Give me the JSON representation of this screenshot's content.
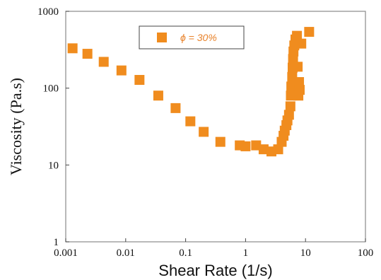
{
  "chart_data": {
    "type": "scatter",
    "xlabel": "Shear Rate (1/s)",
    "ylabel": "Viscosity (Pa.s)",
    "x_scale": "log",
    "y_scale": "log",
    "xlim": [
      0.001,
      100
    ],
    "ylim": [
      1,
      1000
    ],
    "x_ticks": [
      {
        "value": 0.001,
        "label": "0.001"
      },
      {
        "value": 0.01,
        "label": "0.01"
      },
      {
        "value": 0.1,
        "label": "0.1"
      },
      {
        "value": 1,
        "label": "1"
      },
      {
        "value": 10,
        "label": "10"
      },
      {
        "value": 100,
        "label": "100"
      }
    ],
    "y_ticks": [
      {
        "value": 1,
        "label": "1"
      },
      {
        "value": 10,
        "label": "10"
      },
      {
        "value": 100,
        "label": "100"
      },
      {
        "value": 1000,
        "label": "1000"
      }
    ],
    "grid": false,
    "legend_position": "top-center",
    "series": [
      {
        "name": "ϕ = 30%",
        "color": "#f08c1e",
        "marker": "square",
        "points": [
          {
            "x": 0.0013,
            "y": 330
          },
          {
            "x": 0.0023,
            "y": 280
          },
          {
            "x": 0.0043,
            "y": 220
          },
          {
            "x": 0.0085,
            "y": 170
          },
          {
            "x": 0.017,
            "y": 128
          },
          {
            "x": 0.035,
            "y": 80
          },
          {
            "x": 0.068,
            "y": 55
          },
          {
            "x": 0.12,
            "y": 37
          },
          {
            "x": 0.2,
            "y": 27
          },
          {
            "x": 0.38,
            "y": 20
          },
          {
            "x": 0.8,
            "y": 18
          },
          {
            "x": 1.0,
            "y": 17.5
          },
          {
            "x": 1.5,
            "y": 18
          },
          {
            "x": 2.0,
            "y": 16
          },
          {
            "x": 2.7,
            "y": 15
          },
          {
            "x": 3.5,
            "y": 16
          },
          {
            "x": 4.0,
            "y": 20
          },
          {
            "x": 4.3,
            "y": 24
          },
          {
            "x": 4.5,
            "y": 28
          },
          {
            "x": 4.8,
            "y": 33
          },
          {
            "x": 5.0,
            "y": 38
          },
          {
            "x": 5.3,
            "y": 45
          },
          {
            "x": 5.6,
            "y": 58
          },
          {
            "x": 5.7,
            "y": 80
          },
          {
            "x": 5.8,
            "y": 105
          },
          {
            "x": 6.0,
            "y": 140
          },
          {
            "x": 6.1,
            "y": 185
          },
          {
            "x": 6.2,
            "y": 240
          },
          {
            "x": 6.3,
            "y": 300
          },
          {
            "x": 6.5,
            "y": 360
          },
          {
            "x": 6.8,
            "y": 430
          },
          {
            "x": 7.2,
            "y": 480
          },
          {
            "x": 7.6,
            "y": 80
          },
          {
            "x": 7.8,
            "y": 120
          },
          {
            "x": 8.0,
            "y": 95
          },
          {
            "x": 7.4,
            "y": 190
          },
          {
            "x": 8.5,
            "y": 380
          },
          {
            "x": 11.5,
            "y": 540
          }
        ]
      }
    ]
  }
}
